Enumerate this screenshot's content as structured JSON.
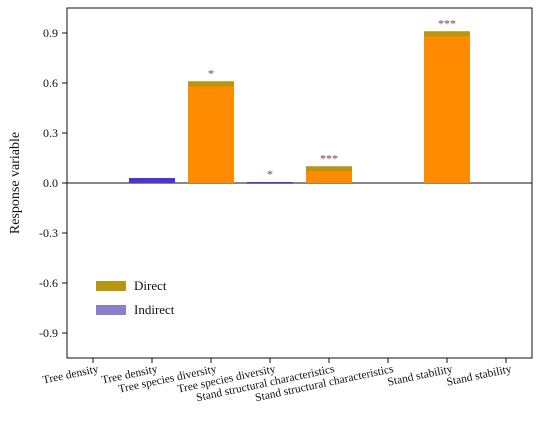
{
  "chart_data": {
    "type": "bar",
    "ylabel": "Response variable",
    "xlabel": "",
    "ylim": [
      -1.05,
      1.05
    ],
    "yticks": [
      -0.9,
      -0.6,
      -0.3,
      0.0,
      0.3,
      0.6,
      0.9
    ],
    "ytick_labels": [
      "-0.9",
      "-0.6",
      "-0.3",
      "0.0",
      "0.3",
      "0.6",
      "0.9"
    ],
    "categories": [
      "Tree density",
      "Tree density",
      "Tree species diversity",
      "Tree species diversity",
      "Stand structural characteristics",
      "Stand structural characteristics",
      "Stand stability",
      "Stand stability"
    ],
    "series": [
      {
        "name": "Direct",
        "color": "#b8960f"
      },
      {
        "name": "Indirect",
        "color": "#8c7fc9"
      }
    ],
    "bars": [
      {
        "category_index": 1,
        "value": 0.03,
        "color": "#4b35d8",
        "label": ""
      },
      {
        "category_index": 2,
        "value": 0.61,
        "color": "#ff8c00",
        "label": "*"
      },
      {
        "category_index": 3,
        "value": 0.005,
        "color": "#2020a0",
        "label": "*"
      },
      {
        "category_index": 4,
        "value": 0.1,
        "color": "#ff8c00",
        "label": "***"
      },
      {
        "category_index": 6,
        "value": 0.91,
        "color": "#ff8c00",
        "label": "***"
      }
    ],
    "legend": {
      "placement": "lower-left"
    },
    "grid": false
  }
}
